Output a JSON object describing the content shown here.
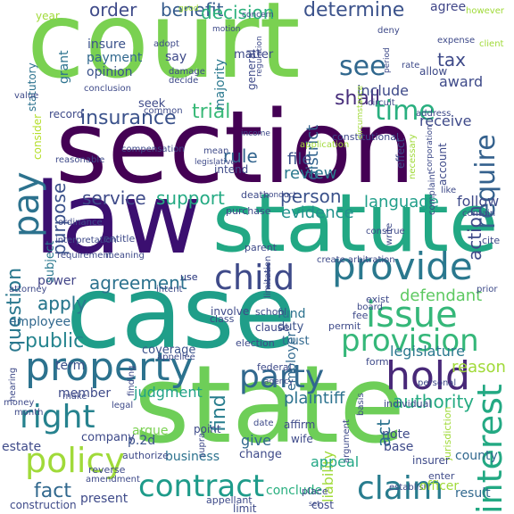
{
  "words": [
    {
      "text": "court",
      "color": "#7ad151"
    },
    {
      "text": "section",
      "color": "#440154"
    },
    {
      "text": "law",
      "color": "#3b0f70"
    },
    {
      "text": "statute",
      "color": "#22a884"
    },
    {
      "text": "case",
      "color": "#1f9e89"
    },
    {
      "text": "state",
      "color": "#6ece58"
    },
    {
      "text": "provide",
      "color": "#2a788e"
    },
    {
      "text": "child",
      "color": "#3e4a89"
    },
    {
      "text": "issue",
      "color": "#35b779"
    },
    {
      "text": "party",
      "color": "#31688e"
    },
    {
      "text": "hold",
      "color": "#482878"
    },
    {
      "text": "property",
      "color": "#2c728e"
    },
    {
      "text": "provision",
      "color": "#35b779"
    },
    {
      "text": "policy",
      "color": "#a0da39"
    },
    {
      "text": "right",
      "color": "#26828e"
    },
    {
      "text": "contract",
      "color": "#1e9b8a"
    },
    {
      "text": "claim",
      "color": "#287c8e"
    },
    {
      "text": "pay",
      "color": "#2c728e"
    },
    {
      "text": "interest",
      "color": "#23a983"
    },
    {
      "text": "require",
      "color": "#34618d"
    },
    {
      "text": "see",
      "color": "#31688e"
    },
    {
      "text": "shall",
      "color": "#472d7b"
    },
    {
      "text": "time",
      "color": "#29af7f"
    },
    {
      "text": "tax",
      "color": "#3e4a89"
    },
    {
      "text": "order",
      "color": "#3e4a89"
    },
    {
      "text": "benefit",
      "color": "#365c8d"
    },
    {
      "text": "decision",
      "color": "#2db27d"
    },
    {
      "text": "determine",
      "color": "#3b528b"
    },
    {
      "text": "agree",
      "color": "#404688"
    },
    {
      "text": "insurance",
      "color": "#3b528b"
    },
    {
      "text": "trial",
      "color": "#38b977"
    },
    {
      "text": "rule",
      "color": "#32648e"
    },
    {
      "text": "service",
      "color": "#3e4a89"
    },
    {
      "text": "support",
      "color": "#24aa83"
    },
    {
      "text": "person",
      "color": "#3b528b"
    },
    {
      "text": "purpose",
      "color": "#3b528b"
    },
    {
      "text": "question",
      "color": "#2a788e"
    },
    {
      "text": "agreement",
      "color": "#2c728e"
    },
    {
      "text": "apply",
      "color": "#2a788e"
    },
    {
      "text": "public",
      "color": "#25848e"
    },
    {
      "text": "fact",
      "color": "#31688e"
    },
    {
      "text": "district",
      "color": "#32648e"
    },
    {
      "text": "action",
      "color": "#3e4a89"
    },
    {
      "text": "file",
      "color": "#3b528b"
    },
    {
      "text": "review",
      "color": "#2a788e"
    },
    {
      "text": "evidence",
      "color": "#21918c"
    },
    {
      "text": "language",
      "color": "#1f9e89"
    },
    {
      "text": "follow",
      "color": "#3e4a89"
    },
    {
      "text": "include",
      "color": "#3e4a89"
    },
    {
      "text": "award",
      "color": "#3e4a89"
    },
    {
      "text": "receive",
      "color": "#3e4a89"
    },
    {
      "text": "find",
      "color": "#287d8e"
    },
    {
      "text": "act",
      "color": "#2c728e"
    },
    {
      "text": "authority",
      "color": "#25ab82"
    },
    {
      "text": "plaintiff",
      "color": "#2c728e"
    },
    {
      "text": "defendant",
      "color": "#5ec962"
    },
    {
      "text": "legislature",
      "color": "#2a788e"
    },
    {
      "text": "judgment",
      "color": "#1fa287"
    },
    {
      "text": "member",
      "color": "#3e4a89"
    },
    {
      "text": "term",
      "color": "#3b528b"
    },
    {
      "text": "employee",
      "color": "#31688e"
    },
    {
      "text": "power",
      "color": "#414487"
    },
    {
      "text": "argue",
      "color": "#7ad151"
    },
    {
      "text": "business",
      "color": "#2c728e"
    },
    {
      "text": "give",
      "color": "#31688e"
    },
    {
      "text": "liability",
      "color": "#a0da39"
    },
    {
      "text": "appeal",
      "color": "#22a785"
    },
    {
      "text": "present",
      "color": "#3e4a89"
    },
    {
      "text": "conclude",
      "color": "#29af7f"
    },
    {
      "text": "result",
      "color": "#31688e"
    },
    {
      "text": "county",
      "color": "#31688e"
    },
    {
      "text": "note",
      "color": "#3e4a89"
    },
    {
      "text": "base",
      "color": "#3e4a89"
    },
    {
      "text": "estate",
      "color": "#3e4a89"
    },
    {
      "text": "company",
      "color": "#3e4a89"
    },
    {
      "text": "p.2d",
      "color": "#3b528b"
    },
    {
      "text": "fund",
      "color": "#2c728e"
    },
    {
      "text": "duty",
      "color": "#3b528b"
    },
    {
      "text": "trust",
      "color": "#31688e"
    },
    {
      "text": "employer",
      "color": "#31688e"
    },
    {
      "text": "coverage",
      "color": "#3b528b"
    },
    {
      "text": "insure",
      "color": "#3b528b"
    },
    {
      "text": "payment",
      "color": "#31688e"
    },
    {
      "text": "opinion",
      "color": "#3b528b"
    },
    {
      "text": "grant",
      "color": "#2c728e"
    },
    {
      "text": "say",
      "color": "#3e4a89"
    },
    {
      "text": "matter",
      "color": "#3e4a89"
    },
    {
      "text": "general",
      "color": "#3e4a89"
    },
    {
      "text": "majority",
      "color": "#2a788e"
    },
    {
      "text": "year",
      "color": "#a0da39"
    },
    {
      "text": "statutory",
      "color": "#2c728e"
    },
    {
      "text": "seek",
      "color": "#3e4a89"
    },
    {
      "text": "record",
      "color": "#3e4a89"
    },
    {
      "text": "consider",
      "color": "#b5de2b"
    },
    {
      "text": "subject",
      "color": "#2a788e"
    },
    {
      "text": "intend",
      "color": "#3e4a89"
    },
    {
      "text": "necessary",
      "color": "#a0da39"
    },
    {
      "text": "effect",
      "color": "#3e4a89"
    },
    {
      "text": "account",
      "color": "#3e4a89"
    },
    {
      "text": "constitutional",
      "color": "#3e4a89"
    },
    {
      "text": "apply",
      "color": "#2a788e"
    },
    {
      "text": "create arbitration",
      "color": "#3e4a89"
    },
    {
      "text": "limitation",
      "color": "#3e4a89"
    },
    {
      "text": "involve",
      "color": "#3e4a89"
    },
    {
      "text": "school",
      "color": "#3e4a89"
    },
    {
      "text": "clause",
      "color": "#3e4a89"
    },
    {
      "text": "election",
      "color": "#3e4a89"
    },
    {
      "text": "federal",
      "color": "#3e4a89"
    },
    {
      "text": "permit",
      "color": "#3e4a89"
    },
    {
      "text": "board",
      "color": "#3e4a89"
    },
    {
      "text": "fee",
      "color": "#3e4a89"
    },
    {
      "text": "exist",
      "color": "#3e4a89"
    },
    {
      "text": "reason",
      "color": "#a0da39"
    },
    {
      "text": "form",
      "color": "#3e4a89"
    },
    {
      "text": "individual",
      "color": "#3e4a89"
    },
    {
      "text": "jurisdiction",
      "color": "#a0da39"
    },
    {
      "text": "insurer",
      "color": "#3e4a89"
    },
    {
      "text": "argument",
      "color": "#3e4a89"
    },
    {
      "text": "wife",
      "color": "#3e4a89"
    },
    {
      "text": "change",
      "color": "#3e4a89"
    },
    {
      "text": "affirm",
      "color": "#3e4a89"
    },
    {
      "text": "date",
      "color": "#3e4a89"
    },
    {
      "text": "point",
      "color": "#3e4a89"
    },
    {
      "text": "authorize",
      "color": "#3e4a89"
    },
    {
      "text": "reverse",
      "color": "#3e4a89"
    },
    {
      "text": "amendment",
      "color": "#3e4a89"
    },
    {
      "text": "construction",
      "color": "#3e4a89"
    },
    {
      "text": "appellant",
      "color": "#3e4a89"
    },
    {
      "text": "limit",
      "color": "#3e4a89"
    },
    {
      "text": "cost",
      "color": "#3e4a89"
    },
    {
      "text": "place",
      "color": "#3e4a89"
    },
    {
      "text": "establish",
      "color": "#3e4a89"
    },
    {
      "text": "officer",
      "color": "#a0da39"
    },
    {
      "text": "enter",
      "color": "#3e4a89"
    },
    {
      "text": "supra",
      "color": "#3e4a89"
    },
    {
      "text": "make",
      "color": "#3e4a89"
    },
    {
      "text": "hearing",
      "color": "#3e4a89"
    },
    {
      "text": "attorney",
      "color": "#3e4a89"
    },
    {
      "text": "money",
      "color": "#3e4a89"
    },
    {
      "text": "month",
      "color": "#3e4a89"
    },
    {
      "text": "legal",
      "color": "#3e4a89"
    },
    {
      "text": "finding",
      "color": "#3e4a89"
    },
    {
      "text": "appellee",
      "color": "#3e4a89"
    },
    {
      "text": "intent",
      "color": "#3e4a89"
    },
    {
      "text": "class",
      "color": "#3e4a89"
    },
    {
      "text": "use",
      "color": "#3e4a89"
    },
    {
      "text": "parent",
      "color": "#3e4a89"
    },
    {
      "text": "entitle",
      "color": "#3e4a89"
    },
    {
      "text": "requirement",
      "color": "#3e4a89"
    },
    {
      "text": "interpretation",
      "color": "#3e4a89"
    },
    {
      "text": "ordinance",
      "color": "#3e4a89"
    },
    {
      "text": "meaning",
      "color": "#3e4a89"
    },
    {
      "text": "purchase",
      "color": "#3e4a89"
    },
    {
      "text": "death",
      "color": "#3e4a89"
    },
    {
      "text": "mean",
      "color": "#3e4a89"
    },
    {
      "text": "legislative",
      "color": "#3e4a89"
    },
    {
      "text": "application",
      "color": "#a0da39"
    },
    {
      "text": "income",
      "color": "#3e4a89"
    },
    {
      "text": "compensation",
      "color": "#3e4a89"
    },
    {
      "text": "reasonable",
      "color": "#3e4a89"
    },
    {
      "text": "value",
      "color": "#3e4a89"
    },
    {
      "text": "conclusion",
      "color": "#3e4a89"
    },
    {
      "text": "decide",
      "color": "#3e4a89"
    },
    {
      "text": "damage",
      "color": "#3e4a89"
    },
    {
      "text": "adopt",
      "color": "#3e4a89"
    },
    {
      "text": "common",
      "color": "#3e4a89"
    },
    {
      "text": "regulation",
      "color": "#3e4a89"
    },
    {
      "text": "motion",
      "color": "#3e4a89"
    },
    {
      "text": "concern",
      "color": "#3e4a89"
    },
    {
      "text": "good",
      "color": "#a0da39"
    },
    {
      "text": "deny",
      "color": "#3e4a89"
    },
    {
      "text": "rate",
      "color": "#3e4a89"
    },
    {
      "text": "circuit",
      "color": "#3e4a89"
    },
    {
      "text": "circumstance",
      "color": "#a0da39"
    },
    {
      "text": "period",
      "color": "#3e4a89"
    },
    {
      "text": "allow",
      "color": "#3e4a89"
    },
    {
      "text": "expense",
      "color": "#3e4a89"
    },
    {
      "text": "however",
      "color": "#a0da39"
    },
    {
      "text": "client",
      "color": "#a0da39"
    },
    {
      "text": "address",
      "color": "#3e4a89"
    },
    {
      "text": "corporation",
      "color": "#3e4a89"
    },
    {
      "text": "complaint",
      "color": "#3e4a89"
    },
    {
      "text": "contain",
      "color": "#3e4a89"
    },
    {
      "text": "cite",
      "color": "#3e4a89"
    },
    {
      "text": "prior",
      "color": "#3e4a89"
    },
    {
      "text": "personal",
      "color": "#3e4a89"
    },
    {
      "text": "basis",
      "color": "#3e4a89"
    },
    {
      "text": "construe",
      "color": "#3e4a89"
    },
    {
      "text": "write",
      "color": "#3e4a89"
    },
    {
      "text": "like",
      "color": "#3e4a89"
    },
    {
      "text": "conduct",
      "color": "#3e4a89"
    },
    {
      "text": "agency",
      "color": "#3e4a89"
    },
    {
      "text": "use",
      "color": "#3e4a89"
    },
    {
      "text": "set",
      "color": "#3e4a89"
    }
  ]
}
